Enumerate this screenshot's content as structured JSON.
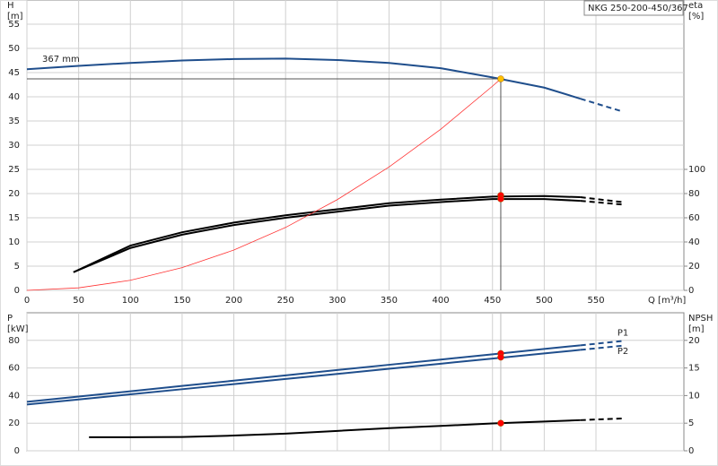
{
  "chart_data": [
    {
      "type": "line",
      "title": "NKG 250-200-450/367",
      "y_label": "H",
      "y_unit": "[m]",
      "y2_label": "eta",
      "y2_unit": "[%]",
      "x_label": "Q [m³/h]",
      "xlim": [
        0,
        635
      ],
      "xticks": [
        0,
        50,
        100,
        150,
        200,
        250,
        300,
        350,
        400,
        450,
        500,
        550
      ],
      "ylim": [
        0,
        60
      ],
      "yticks": [
        0,
        5,
        10,
        15,
        20,
        25,
        30,
        35,
        40,
        45,
        50,
        55
      ],
      "y2lim": [
        0,
        240
      ],
      "y2ticks": [
        0,
        20,
        40,
        60,
        80,
        100
      ],
      "grid": true,
      "series": [
        {
          "name": "367 mm",
          "color": "#1f4e8c",
          "dash_from": 11,
          "x": [
            0,
            50,
            100,
            150,
            200,
            250,
            300,
            350,
            400,
            450,
            500,
            535,
            575
          ],
          "values": [
            45.7,
            46.4,
            47.0,
            47.5,
            47.8,
            47.9,
            47.6,
            47.0,
            45.9,
            44.0,
            41.9,
            39.6,
            37.0
          ],
          "marker": {
            "x": 458,
            "value": 43.7,
            "color": "#ffc000"
          }
        },
        {
          "color": "#000000",
          "axis": "y2",
          "dash_from": 10,
          "x": [
            45,
            100,
            150,
            200,
            250,
            300,
            350,
            400,
            450,
            500,
            535,
            575
          ],
          "values": [
            15,
            37,
            48,
            56,
            62,
            67,
            72,
            75,
            77.5,
            78,
            77,
            73
          ],
          "marker": {
            "x": 458,
            "value": 78.5,
            "color": "#ff0000"
          }
        },
        {
          "color": "#000000",
          "axis": "y2",
          "dash_from": 10,
          "x": [
            45,
            100,
            150,
            200,
            250,
            300,
            350,
            400,
            450,
            500,
            535,
            575
          ],
          "values": [
            15,
            35,
            46,
            54,
            60,
            65,
            70,
            73,
            75.5,
            75.5,
            74,
            71
          ],
          "marker": {
            "x": 458,
            "value": 75.6,
            "color": "#ff0000"
          }
        },
        {
          "color": "#ff3333",
          "x": [
            0,
            50,
            100,
            150,
            200,
            250,
            300,
            350,
            400,
            450,
            458
          ],
          "values": [
            0,
            0.52,
            2.08,
            4.69,
            8.33,
            13.0,
            18.75,
            25.5,
            33.3,
            42.2,
            43.7
          ]
        }
      ]
    },
    {
      "type": "line",
      "y_label": "P",
      "y_unit": "[kW]",
      "y2_label": "NPSH",
      "y2_unit": "[m]",
      "xlim": [
        0,
        635
      ],
      "xticks": [
        0,
        50,
        100,
        150,
        200,
        250,
        300,
        350,
        400,
        450,
        500,
        550
      ],
      "xtick_labels": false,
      "ylim": [
        0,
        100
      ],
      "yticks": [
        0,
        20,
        40,
        60,
        80
      ],
      "y2lim": [
        0,
        25
      ],
      "y2ticks": [
        0,
        5,
        10,
        15,
        20
      ],
      "grid": true,
      "series": [
        {
          "name": "P1",
          "color": "#1f4e8c",
          "dash_from": 11,
          "x": [
            0,
            50,
            100,
            150,
            200,
            250,
            300,
            350,
            400,
            450,
            500,
            535,
            575
          ],
          "values": [
            35.5,
            39.3,
            43.1,
            47.0,
            50.8,
            54.6,
            58.5,
            62.3,
            66.1,
            69.9,
            73.8,
            76.4,
            79.5
          ],
          "marker": {
            "x": 458,
            "value": 70.5,
            "color": "#ff0000"
          }
        },
        {
          "name": "P2",
          "color": "#1f4e8c",
          "dash_from": 11,
          "x": [
            0,
            50,
            100,
            150,
            200,
            250,
            300,
            350,
            400,
            450,
            500,
            535,
            575
          ],
          "values": [
            33.5,
            37.2,
            40.9,
            44.6,
            48.3,
            52.0,
            55.7,
            59.4,
            63.1,
            66.8,
            70.5,
            73.1,
            76.1
          ],
          "marker": {
            "x": 458,
            "value": 67.8,
            "color": "#ff0000"
          }
        },
        {
          "color": "#000000",
          "axis": "y2",
          "dash_from": 10,
          "x": [
            60,
            100,
            150,
            200,
            250,
            300,
            350,
            400,
            450,
            500,
            535,
            575
          ],
          "values": [
            2.45,
            2.45,
            2.5,
            2.75,
            3.1,
            3.6,
            4.1,
            4.5,
            4.95,
            5.3,
            5.55,
            5.85
          ],
          "marker": {
            "x": 458,
            "value": 5.0,
            "color": "#ff0000"
          }
        }
      ]
    }
  ]
}
